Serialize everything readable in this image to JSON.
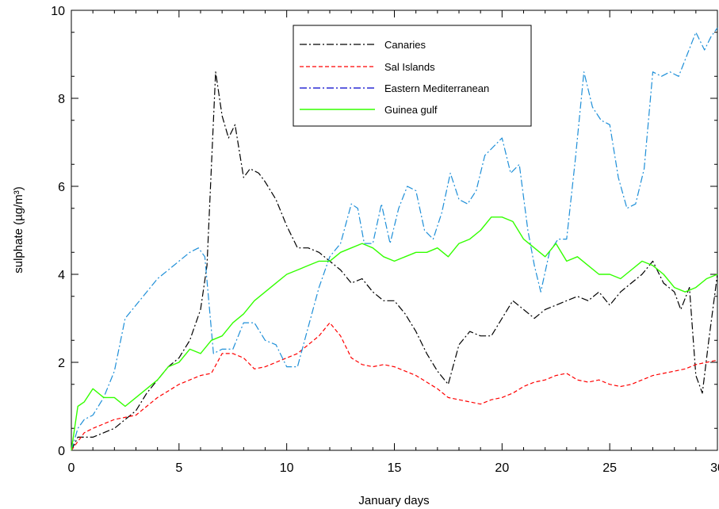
{
  "chart_data": {
    "type": "line",
    "xlabel": "January days",
    "ylabel": "sulphate (µg/m³)",
    "xlim": [
      0,
      30
    ],
    "ylim": [
      0,
      10
    ],
    "xticks": [
      0,
      5,
      10,
      15,
      20,
      25,
      30
    ],
    "yticks": [
      0,
      2,
      4,
      6,
      8,
      10
    ],
    "grid": false,
    "legend_position": "top-center",
    "series": [
      {
        "name": "Canaries",
        "color": "#000000",
        "dash": "dash-dot",
        "x": [
          0,
          0.3,
          0.6,
          1,
          1.5,
          2,
          2.5,
          3,
          3.5,
          4,
          4.5,
          5,
          5.5,
          6,
          6.3,
          6.7,
          7,
          7.3,
          7.6,
          8,
          8.3,
          8.7,
          9,
          9.5,
          10,
          10.5,
          11,
          11.5,
          12,
          12.5,
          13,
          13.5,
          14,
          14.5,
          15,
          15.5,
          16,
          16.5,
          17,
          17.5,
          18,
          18.5,
          19,
          19.5,
          20,
          20.5,
          21,
          21.5,
          22,
          22.5,
          23,
          23.5,
          24,
          24.5,
          25,
          25.5,
          26,
          26.5,
          27,
          27.5,
          28,
          28.3,
          28.7,
          29,
          29.3,
          29.6,
          30
        ],
        "values": [
          0,
          0.3,
          0.3,
          0.3,
          0.4,
          0.5,
          0.7,
          0.9,
          1.3,
          1.6,
          1.9,
          2.1,
          2.5,
          3.2,
          4.2,
          8.6,
          7.6,
          7.1,
          7.4,
          6.2,
          6.4,
          6.3,
          6.1,
          5.7,
          5.1,
          4.6,
          4.6,
          4.5,
          4.3,
          4.1,
          3.8,
          3.9,
          3.6,
          3.4,
          3.4,
          3.1,
          2.7,
          2.2,
          1.8,
          1.5,
          2.4,
          2.7,
          2.6,
          2.6,
          3.0,
          3.4,
          3.2,
          3.0,
          3.2,
          3.3,
          3.4,
          3.5,
          3.4,
          3.6,
          3.3,
          3.6,
          3.8,
          4.0,
          4.3,
          3.8,
          3.6,
          3.2,
          3.7,
          1.7,
          1.3,
          2.5,
          4.0
        ]
      },
      {
        "name": "Sal Islands",
        "color": "#ff0000",
        "dash": "dashed",
        "x": [
          0,
          0.3,
          0.6,
          1,
          1.5,
          2,
          2.5,
          3,
          3.5,
          4,
          4.5,
          5,
          5.5,
          6,
          6.5,
          7,
          7.5,
          8,
          8.5,
          9,
          9.5,
          10,
          10.5,
          11,
          11.5,
          12,
          12.5,
          13,
          13.5,
          14,
          14.5,
          15,
          15.5,
          16,
          16.5,
          17,
          17.5,
          18,
          18.5,
          19,
          19.5,
          20,
          20.5,
          21,
          21.5,
          22,
          22.5,
          23,
          23.5,
          24,
          24.5,
          25,
          25.5,
          26,
          26.5,
          27,
          27.5,
          28,
          28.5,
          29,
          29.5,
          30
        ],
        "values": [
          0,
          0.2,
          0.4,
          0.5,
          0.6,
          0.7,
          0.75,
          0.8,
          1.0,
          1.2,
          1.35,
          1.5,
          1.6,
          1.7,
          1.75,
          2.2,
          2.2,
          2.1,
          1.85,
          1.9,
          2.0,
          2.1,
          2.2,
          2.4,
          2.6,
          2.9,
          2.6,
          2.1,
          1.95,
          1.9,
          1.95,
          1.9,
          1.8,
          1.7,
          1.55,
          1.4,
          1.2,
          1.15,
          1.1,
          1.05,
          1.15,
          1.2,
          1.3,
          1.45,
          1.55,
          1.6,
          1.7,
          1.75,
          1.6,
          1.55,
          1.6,
          1.5,
          1.45,
          1.5,
          1.6,
          1.7,
          1.75,
          1.8,
          1.85,
          1.95,
          2.0,
          2.05
        ]
      },
      {
        "name": "Eastern Mediterranean",
        "color": "#1e8fd8",
        "dash": "dash-dot",
        "x": [
          0,
          0.3,
          0.6,
          1,
          1.5,
          2,
          2.5,
          3,
          3.5,
          4,
          4.5,
          5,
          5.5,
          5.9,
          6.2,
          6.6,
          7,
          7.5,
          8,
          8.5,
          9,
          9.5,
          10,
          10.5,
          11,
          11.5,
          12,
          12.5,
          13,
          13.3,
          13.6,
          14,
          14.4,
          14.8,
          15.2,
          15.6,
          16,
          16.4,
          16.8,
          17.2,
          17.6,
          18,
          18.4,
          18.8,
          19.2,
          19.6,
          20,
          20.4,
          20.8,
          21.2,
          21.5,
          21.8,
          22.2,
          22.6,
          23,
          23.4,
          23.8,
          24.2,
          24.6,
          25,
          25.4,
          25.8,
          26.2,
          26.6,
          27,
          27.4,
          27.8,
          28.2,
          28.6,
          29,
          29.4,
          29.7,
          30
        ],
        "values": [
          0,
          0.5,
          0.7,
          0.8,
          1.2,
          1.8,
          3.0,
          3.3,
          3.6,
          3.9,
          4.1,
          4.3,
          4.5,
          4.6,
          4.4,
          2.2,
          2.3,
          2.3,
          2.9,
          2.9,
          2.5,
          2.4,
          1.9,
          1.9,
          2.8,
          3.7,
          4.4,
          4.7,
          5.6,
          5.5,
          4.7,
          4.7,
          5.6,
          4.7,
          5.5,
          6.0,
          5.9,
          5.0,
          4.8,
          5.4,
          6.3,
          5.7,
          5.6,
          5.9,
          6.7,
          6.9,
          7.1,
          6.3,
          6.5,
          5.0,
          4.2,
          3.6,
          4.5,
          4.8,
          4.8,
          6.6,
          8.6,
          7.8,
          7.5,
          7.4,
          6.2,
          5.5,
          5.6,
          6.4,
          8.6,
          8.5,
          8.6,
          8.5,
          9.0,
          9.5,
          9.1,
          9.4,
          9.6
        ]
      },
      {
        "name": "Guinea gulf",
        "color": "#33ff00",
        "dash": "solid",
        "x": [
          0,
          0.3,
          0.6,
          1,
          1.5,
          2,
          2.5,
          3,
          3.5,
          4,
          4.5,
          5,
          5.5,
          6,
          6.5,
          7,
          7.5,
          8,
          8.5,
          9,
          9.5,
          10,
          10.5,
          11,
          11.5,
          12,
          12.5,
          13,
          13.5,
          14,
          14.5,
          15,
          15.5,
          16,
          16.5,
          17,
          17.5,
          18,
          18.5,
          19,
          19.5,
          20,
          20.5,
          21,
          21.5,
          22,
          22.5,
          23,
          23.5,
          24,
          24.5,
          25,
          25.5,
          26,
          26.5,
          27,
          27.5,
          28,
          28.5,
          29,
          29.5,
          30
        ],
        "values": [
          0,
          1.0,
          1.1,
          1.4,
          1.2,
          1.2,
          1.0,
          1.2,
          1.4,
          1.6,
          1.9,
          2.0,
          2.3,
          2.2,
          2.5,
          2.6,
          2.9,
          3.1,
          3.4,
          3.6,
          3.8,
          4.0,
          4.1,
          4.2,
          4.3,
          4.3,
          4.5,
          4.6,
          4.7,
          4.6,
          4.4,
          4.3,
          4.4,
          4.5,
          4.5,
          4.6,
          4.4,
          4.7,
          4.8,
          5.0,
          5.3,
          5.3,
          5.2,
          4.8,
          4.6,
          4.4,
          4.7,
          4.3,
          4.4,
          4.2,
          4.0,
          4.0,
          3.9,
          4.1,
          4.3,
          4.2,
          4.0,
          3.7,
          3.6,
          3.7,
          3.9,
          4.0
        ]
      }
    ]
  }
}
